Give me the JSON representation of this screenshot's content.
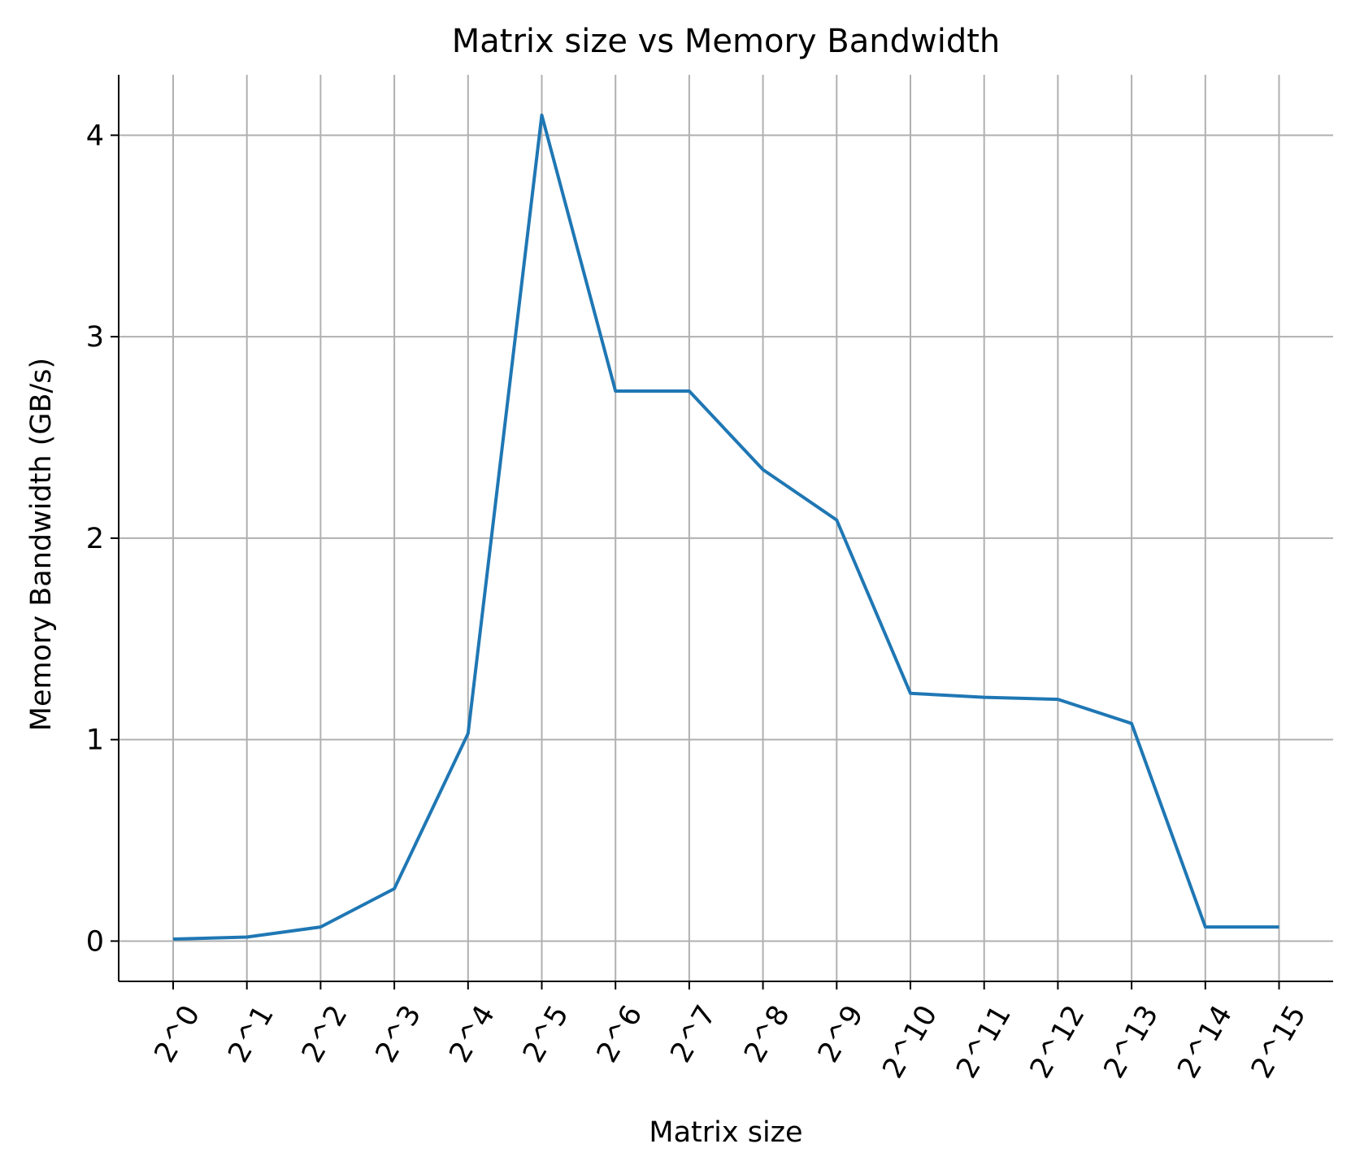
{
  "chart_data": {
    "type": "line",
    "title": "Matrix size vs Memory Bandwidth",
    "xlabel": "Matrix size",
    "ylabel": "Memory Bandwidth (GB/s)",
    "categories": [
      "2^0",
      "2^1",
      "2^2",
      "2^3",
      "2^4",
      "2^5",
      "2^6",
      "2^7",
      "2^8",
      "2^9",
      "2^10",
      "2^11",
      "2^12",
      "2^13",
      "2^14",
      "2^15"
    ],
    "series": [
      {
        "name": "",
        "values": [
          0.01,
          0.02,
          0.07,
          0.26,
          1.03,
          4.1,
          2.73,
          2.73,
          2.34,
          2.09,
          1.23,
          1.21,
          1.2,
          1.08,
          0.07,
          0.07
        ]
      }
    ],
    "yticks": [
      "0",
      "1",
      "2",
      "3",
      "4"
    ],
    "ylim": [
      -0.2,
      4.3
    ],
    "grid": true,
    "x_tick_rotation_deg": 60,
    "line_color": "#1f77b4"
  }
}
